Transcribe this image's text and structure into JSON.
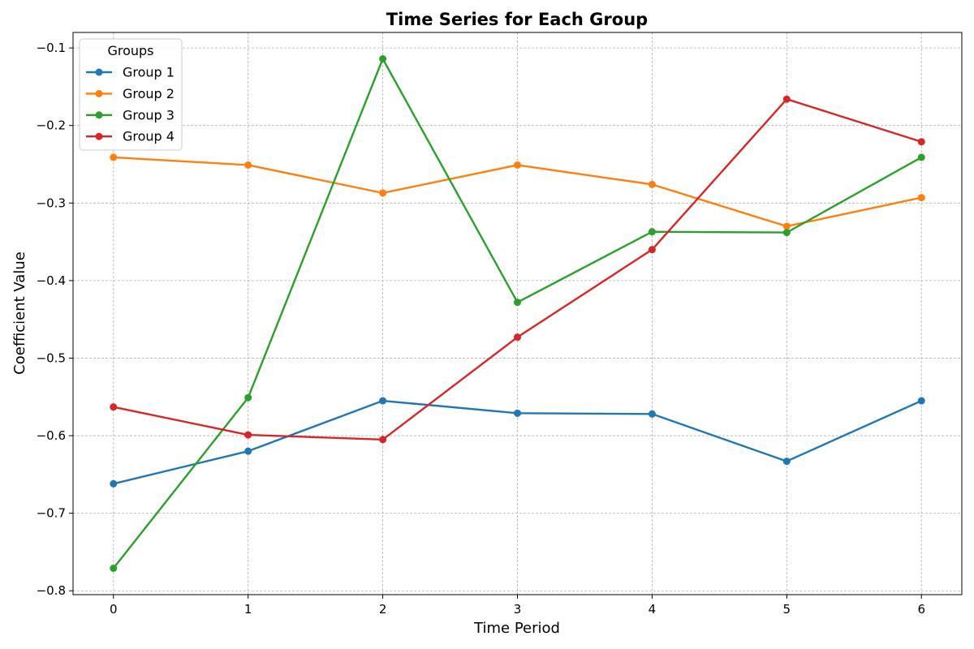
{
  "chart_data": {
    "type": "line",
    "title": "Time Series for Each Group",
    "xlabel": "Time Period",
    "ylabel": "Coefficient Value",
    "x": [
      0,
      1,
      2,
      3,
      4,
      5,
      6
    ],
    "xlim": [
      -0.3,
      6.3
    ],
    "ylim": [
      -0.805,
      -0.08
    ],
    "xticks": [
      0,
      1,
      2,
      3,
      4,
      5,
      6
    ],
    "xtick_labels": [
      "0",
      "1",
      "2",
      "3",
      "4",
      "5",
      "6"
    ],
    "yticks": [
      -0.8,
      -0.7,
      -0.6,
      -0.5,
      -0.4,
      -0.3,
      -0.2,
      -0.1
    ],
    "ytick_labels": [
      "−0.8",
      "−0.7",
      "−0.6",
      "−0.5",
      "−0.4",
      "−0.3",
      "−0.2",
      "−0.1"
    ],
    "grid": true,
    "legend": {
      "title": "Groups",
      "position": "top-left"
    },
    "series": [
      {
        "name": "Group 1",
        "color": "#1f77b4",
        "values": [
          -0.662,
          -0.62,
          -0.555,
          -0.571,
          -0.572,
          -0.633,
          -0.555
        ]
      },
      {
        "name": "Group 2",
        "color": "#ff7f0e",
        "values": [
          -0.241,
          -0.251,
          -0.287,
          -0.251,
          -0.276,
          -0.33,
          -0.293
        ]
      },
      {
        "name": "Group 3",
        "color": "#2ca02c",
        "values": [
          -0.771,
          -0.551,
          -0.114,
          -0.428,
          -0.337,
          -0.338,
          -0.241
        ]
      },
      {
        "name": "Group 4",
        "color": "#d62728",
        "values": [
          -0.563,
          -0.599,
          -0.605,
          -0.473,
          -0.36,
          -0.166,
          -0.221
        ]
      }
    ]
  }
}
